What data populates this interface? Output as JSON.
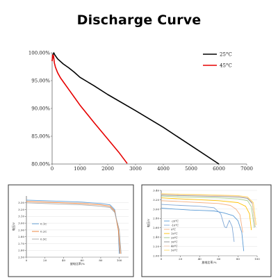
{
  "page": {
    "title": "Discharge Curve"
  },
  "chart_data": [
    {
      "type": "line",
      "title": "Discharge Curve",
      "xlabel": "",
      "ylabel": "",
      "xlim": [
        0,
        7000
      ],
      "ylim": [
        80,
        100
      ],
      "x_ticks": [
        0,
        1000,
        2000,
        3000,
        4000,
        5000,
        6000,
        7000
      ],
      "y_ticks": [
        "80.00%",
        "85.00%",
        "90.00%",
        "95.00%",
        "100.00%"
      ],
      "y_tick_values": [
        80,
        85,
        90,
        95,
        100
      ],
      "legend_position": "top-right",
      "series": [
        {
          "name": "25°C",
          "color": "#000000",
          "points": [
            [
              0,
              98.6
            ],
            [
              30,
              99.6
            ],
            [
              60,
              100.0
            ],
            [
              100,
              99.6
            ],
            [
              200,
              98.9
            ],
            [
              400,
              98.0
            ],
            [
              600,
              97.3
            ],
            [
              800,
              96.5
            ],
            [
              1000,
              95.6
            ],
            [
              1500,
              94.1
            ],
            [
              2000,
              92.5
            ],
            [
              3000,
              89.6
            ],
            [
              4000,
              86.6
            ],
            [
              5000,
              83.3
            ],
            [
              6000,
              80.0
            ]
          ]
        },
        {
          "name": "45°C",
          "color": "#e60000",
          "points": [
            [
              0,
              98.5
            ],
            [
              20,
              99.6
            ],
            [
              50,
              99.5
            ],
            [
              80,
              98.2
            ],
            [
              120,
              97.4
            ],
            [
              200,
              96.4
            ],
            [
              300,
              95.5
            ],
            [
              400,
              94.8
            ],
            [
              600,
              93.4
            ],
            [
              800,
              92.0
            ],
            [
              1000,
              90.6
            ],
            [
              1500,
              87.5
            ],
            [
              2000,
              84.5
            ],
            [
              2400,
              82.1
            ],
            [
              2700,
              80.1
            ]
          ]
        }
      ]
    },
    {
      "type": "line",
      "xlabel": "放电比率/%",
      "ylabel": "电压/V",
      "xlim": [
        0,
        110
      ],
      "ylim": [
        2.5,
        3.4
      ],
      "x_ticks": [
        "0",
        "20",
        "40",
        "60",
        "80",
        "100"
      ],
      "x_tick_values": [
        0,
        20,
        40,
        60,
        80,
        100
      ],
      "y_ticks": [
        "2.50",
        "2.60",
        "2.70",
        "2.80",
        "2.90",
        "3.00",
        "3.10",
        "3.20",
        "3.30"
      ],
      "y_tick_values": [
        2.5,
        2.6,
        2.7,
        2.8,
        2.9,
        3.0,
        3.1,
        3.2,
        3.3
      ],
      "legend_position": "bottom-left",
      "series": [
        {
          "name": "0.1C",
          "color": "#5b9bd5",
          "points": [
            [
              0,
              3.34
            ],
            [
              20,
              3.33
            ],
            [
              40,
              3.32
            ],
            [
              60,
              3.31
            ],
            [
              80,
              3.29
            ],
            [
              90,
              3.27
            ],
            [
              95,
              3.2
            ],
            [
              99,
              2.9
            ],
            [
              100,
              2.55
            ]
          ]
        },
        {
          "name": "0.2C",
          "color": "#ed7d31",
          "points": [
            [
              0,
              3.32
            ],
            [
              20,
              3.31
            ],
            [
              40,
              3.3
            ],
            [
              60,
              3.29
            ],
            [
              80,
              3.27
            ],
            [
              90,
              3.25
            ],
            [
              95,
              3.18
            ],
            [
              99,
              2.9
            ],
            [
              101,
              2.55
            ]
          ]
        },
        {
          "name": "0.5C",
          "color": "#a5a5a5",
          "points": [
            [
              0,
              3.3
            ],
            [
              20,
              3.29
            ],
            [
              40,
              3.28
            ],
            [
              60,
              3.27
            ],
            [
              80,
              3.25
            ],
            [
              90,
              3.23
            ],
            [
              95,
              3.16
            ],
            [
              100,
              2.9
            ],
            [
              102,
              2.55
            ]
          ]
        }
      ]
    },
    {
      "type": "line",
      "xlabel": "放电比率/%",
      "ylabel": "电压/V",
      "xlim": [
        0,
        100
      ],
      "ylim": [
        2.0,
        3.4
      ],
      "x_ticks": [
        "0",
        "20",
        "40",
        "60",
        "80",
        "100"
      ],
      "x_tick_values": [
        0,
        20,
        40,
        60,
        80,
        100
      ],
      "y_ticks": [
        "2.00",
        "2.20",
        "2.40",
        "2.60",
        "2.80",
        "3.00",
        "3.20",
        "3.40"
      ],
      "y_tick_values": [
        2.0,
        2.2,
        2.4,
        2.6,
        2.8,
        3.0,
        3.2,
        3.4
      ],
      "legend_position": "bottom-left",
      "series": [
        {
          "name": "-20℃",
          "color": "#5b9bd5",
          "points": [
            [
              0,
              3.02
            ],
            [
              15,
              3.0
            ],
            [
              30,
              2.98
            ],
            [
              45,
              2.97
            ],
            [
              55,
              2.96
            ],
            [
              65,
              2.92
            ],
            [
              75,
              2.86
            ],
            [
              80,
              2.75
            ],
            [
              84,
              2.5
            ],
            [
              86,
              2.1
            ]
          ]
        },
        {
          "name": "-10℃",
          "color": "#7fa7d6",
          "points": [
            [
              0,
              3.1
            ],
            [
              20,
              3.08
            ],
            [
              40,
              3.06
            ],
            [
              55,
              3.03
            ],
            [
              62,
              2.9
            ],
            [
              66,
              2.62
            ],
            [
              68,
              2.6
            ],
            [
              71,
              2.76
            ],
            [
              74,
              2.62
            ],
            [
              76,
              2.3
            ]
          ]
        },
        {
          "name": "0℃",
          "color": "#f4b183",
          "points": [
            [
              0,
              3.18
            ],
            [
              20,
              3.16
            ],
            [
              40,
              3.14
            ],
            [
              60,
              3.12
            ],
            [
              72,
              3.08
            ],
            [
              78,
              3.0
            ],
            [
              82,
              2.88
            ],
            [
              85,
              2.5
            ]
          ]
        },
        {
          "name": "10℃",
          "color": "#ffc000",
          "points": [
            [
              0,
              3.24
            ],
            [
              20,
              3.22
            ],
            [
              40,
              3.2
            ],
            [
              60,
              3.18
            ],
            [
              80,
              3.14
            ],
            [
              88,
              3.06
            ],
            [
              92,
              2.9
            ],
            [
              94,
              2.55
            ]
          ]
        },
        {
          "name": "20℃",
          "color": "#a9d18e",
          "points": [
            [
              0,
              3.28
            ],
            [
              20,
              3.26
            ],
            [
              40,
              3.25
            ],
            [
              60,
              3.24
            ],
            [
              80,
              3.22
            ],
            [
              90,
              3.18
            ],
            [
              94,
              3.05
            ],
            [
              97,
              2.6
            ]
          ]
        },
        {
          "name": "30℃",
          "color": "#8c8c8c",
          "points": [
            [
              0,
              3.3
            ],
            [
              20,
              3.29
            ],
            [
              40,
              3.28
            ],
            [
              60,
              3.27
            ],
            [
              80,
              3.26
            ],
            [
              90,
              3.23
            ],
            [
              95,
              3.12
            ],
            [
              98,
              2.62
            ]
          ]
        },
        {
          "name": "40℃",
          "color": "#f8cbad",
          "points": [
            [
              0,
              3.32
            ],
            [
              20,
              3.31
            ],
            [
              40,
              3.3
            ],
            [
              60,
              3.29
            ],
            [
              80,
              3.28
            ],
            [
              90,
              3.25
            ],
            [
              95,
              3.14
            ],
            [
              98,
              2.64
            ]
          ]
        },
        {
          "name": "50℃",
          "color": "#ffd966",
          "points": [
            [
              0,
              3.33
            ],
            [
              20,
              3.32
            ],
            [
              40,
              3.31
            ],
            [
              60,
              3.3
            ],
            [
              80,
              3.29
            ],
            [
              90,
              3.26
            ],
            [
              96,
              3.14
            ],
            [
              99,
              2.66
            ]
          ]
        }
      ]
    }
  ]
}
